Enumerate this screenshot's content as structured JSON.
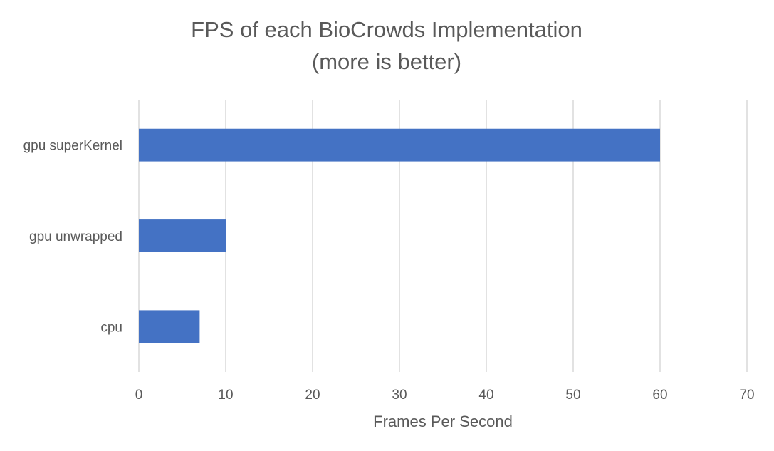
{
  "chart_data": {
    "type": "bar",
    "orientation": "horizontal",
    "title": [
      "FPS of each BioCrowds Implementation",
      "(more is better)"
    ],
    "categories": [
      "gpu superKernel",
      "gpu unwrapped",
      "cpu"
    ],
    "series": [
      {
        "name": "FPS",
        "values": [
          60,
          10,
          7
        ]
      }
    ],
    "xlabel": "Frames Per Second",
    "ylabel": "",
    "xlim": [
      0,
      70
    ],
    "xticks": [
      0,
      10,
      20,
      30,
      40,
      50,
      60,
      70
    ],
    "grid": true,
    "legend": "none"
  },
  "colors": {
    "bar": "#4472c4",
    "grid": "#d9d9d9",
    "text": "#595959"
  }
}
